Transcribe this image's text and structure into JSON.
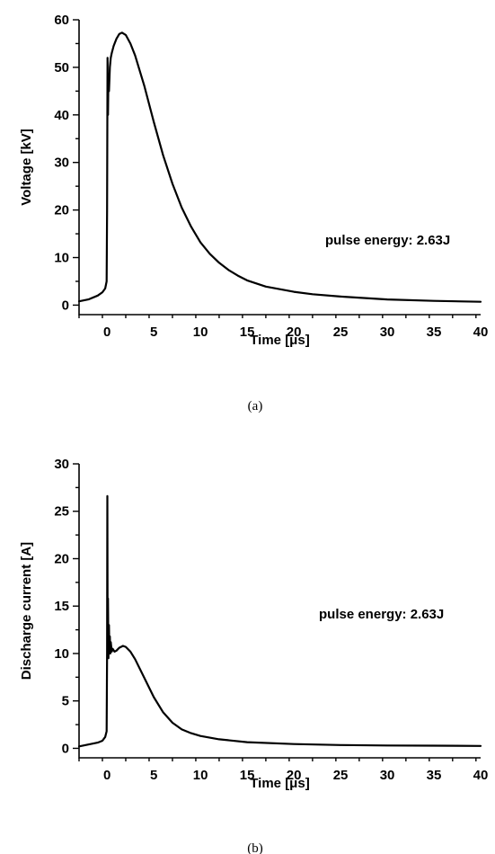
{
  "chart_data": [
    {
      "type": "line",
      "caption": "(a)",
      "xlabel": "Time [μs]",
      "ylabel": "Voltage [kV]",
      "xlim": [
        -3,
        40
      ],
      "ylim": [
        -2,
        60
      ],
      "xticks": [
        0,
        5,
        10,
        15,
        20,
        25,
        30,
        35,
        40
      ],
      "yticks": [
        0,
        10,
        20,
        30,
        40,
        50,
        60
      ],
      "annotation": "pulse energy: 2.63J",
      "series": [
        {
          "x": [
            -3,
            -2,
            -1,
            -0.5,
            -0.2,
            -0.05,
            0.0,
            0.05,
            0.1,
            0.15,
            0.2,
            0.3,
            0.4,
            0.5,
            0.7,
            1.0,
            1.3,
            1.6,
            2.0,
            2.5,
            3,
            4,
            5,
            6,
            7,
            8,
            9,
            10,
            11,
            12,
            13,
            14,
            15,
            17,
            20,
            22,
            25,
            30,
            35,
            40
          ],
          "y": [
            0.8,
            1.2,
            2.0,
            2.7,
            3.5,
            5.0,
            20.0,
            52.0,
            40.0,
            48.0,
            45.0,
            50.0,
            52.0,
            53.0,
            54.5,
            56.0,
            57.0,
            57.3,
            56.8,
            55.0,
            52.5,
            46.0,
            38.5,
            31.5,
            25.5,
            20.5,
            16.5,
            13.2,
            10.8,
            8.9,
            7.4,
            6.2,
            5.2,
            3.9,
            2.8,
            2.3,
            1.8,
            1.2,
            0.9,
            0.7
          ]
        }
      ]
    },
    {
      "type": "line",
      "caption": "(b)",
      "xlabel": "Time [μs]",
      "ylabel": "Discharge current [A]",
      "xlim": [
        -3,
        40
      ],
      "ylim": [
        -1,
        30
      ],
      "xticks": [
        0,
        5,
        10,
        15,
        20,
        25,
        30,
        35,
        40
      ],
      "yticks": [
        0,
        5,
        10,
        15,
        20,
        25,
        30
      ],
      "annotation": "pulse energy: 2.63J",
      "series": [
        {
          "x": [
            -3,
            -2,
            -1,
            -0.5,
            -0.2,
            -0.05,
            0.0,
            0.03,
            0.06,
            0.1,
            0.15,
            0.2,
            0.25,
            0.3,
            0.35,
            0.4,
            0.5,
            0.6,
            0.8,
            1.0,
            1.3,
            1.7,
            2.0,
            2.5,
            3,
            4,
            5,
            6,
            7,
            8,
            9,
            10,
            12,
            15,
            20,
            25,
            30,
            35,
            40
          ],
          "y": [
            0.2,
            0.4,
            0.6,
            0.8,
            1.2,
            1.8,
            10.0,
            26.6,
            12.0,
            15.8,
            9.5,
            13.0,
            10.0,
            11.8,
            10.0,
            11.2,
            10.2,
            10.5,
            10.2,
            10.3,
            10.6,
            10.8,
            10.7,
            10.2,
            9.4,
            7.4,
            5.4,
            3.8,
            2.7,
            2.0,
            1.6,
            1.3,
            0.95,
            0.65,
            0.45,
            0.35,
            0.3,
            0.28,
            0.25
          ]
        }
      ]
    }
  ]
}
